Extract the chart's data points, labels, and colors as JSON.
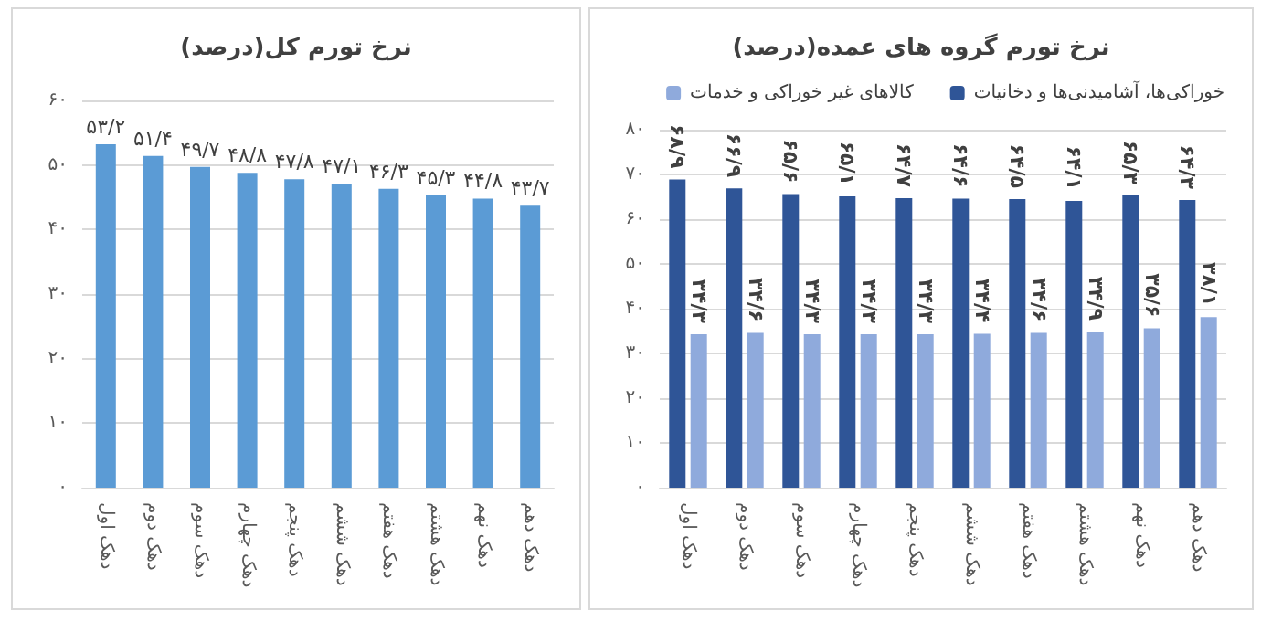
{
  "chart_data": [
    {
      "type": "bar",
      "title": "نرخ تورم کل(درصد)",
      "categories": [
        "دهک اول",
        "دهک دوم",
        "دهک سوم",
        "دهک چهارم",
        "دهک پنجم",
        "دهک ششم",
        "دهک هفتم",
        "دهک هشتم",
        "دهک نهم",
        "دهک دهم"
      ],
      "series": [
        {
          "color": "#5b9bd5",
          "values": [
            53.2,
            51.4,
            49.7,
            48.8,
            47.8,
            47.1,
            46.3,
            45.3,
            44.8,
            43.7
          ],
          "value_labels": [
            "۵۳/۲",
            "۵۱/۴",
            "۴۹/۷",
            "۴۸/۸",
            "۴۷/۸",
            "۴۷/۱",
            "۴۶/۳",
            "۴۵/۳",
            "۴۴/۸",
            "۴۳/۷"
          ]
        }
      ],
      "ylim": [
        0,
        60
      ],
      "yticks": [
        {
          "value": 0,
          "label": "۰"
        },
        {
          "value": 10,
          "label": "۱۰"
        },
        {
          "value": 20,
          "label": "۲۰"
        },
        {
          "value": 30,
          "label": "۳۰"
        },
        {
          "value": 40,
          "label": "۴۰"
        },
        {
          "value": 50,
          "label": "۵۰"
        },
        {
          "value": 60,
          "label": "۶۰"
        }
      ],
      "grid": "y",
      "legend": false
    },
    {
      "type": "bar",
      "title": "نرخ تورم گروه های عمده(درصد)",
      "categories": [
        "دهک اول",
        "دهک دوم",
        "دهک سوم",
        "دهک چهارم",
        "دهک پنجم",
        "دهک ششم",
        "دهک هفتم",
        "دهک هشتم",
        "دهک نهم",
        "دهک دهم"
      ],
      "series": [
        {
          "name": "خوراکی‌ها، آشامیدنی‌ها و دخانیات",
          "color": "#2f5597",
          "values": [
            68.9,
            66.9,
            65.6,
            65.1,
            64.7,
            64.6,
            64.5,
            64.1,
            65.3,
            64.3
          ],
          "value_labels": [
            "۶۸/۹",
            "۶۶/۹",
            "۶۵/۶",
            "۶۵/۱",
            "۶۴/۷",
            "۶۴/۶",
            "۶۴/۵",
            "۶۴/۱",
            "۶۵/۳",
            "۶۴/۳"
          ]
        },
        {
          "name": "کالاهای غیر خوراکی و خدمات",
          "color": "#8faadc",
          "values": [
            34.3,
            34.6,
            34.3,
            34.3,
            34.3,
            34.4,
            34.6,
            34.9,
            35.6,
            38.1
          ],
          "value_labels": [
            "۳۴/۳",
            "۳۴/۶",
            "۳۴/۳",
            "۳۴/۳",
            "۳۴/۳",
            "۳۴/۴",
            "۳۴/۶",
            "۳۴/۹",
            "۳۵/۶",
            "۳۸/۱"
          ]
        }
      ],
      "ylim": [
        0,
        80
      ],
      "yticks": [
        {
          "value": 0,
          "label": "۰"
        },
        {
          "value": 10,
          "label": "۱۰"
        },
        {
          "value": 20,
          "label": "۲۰"
        },
        {
          "value": 30,
          "label": "۳۰"
        },
        {
          "value": 40,
          "label": "۴۰"
        },
        {
          "value": 50,
          "label": "۵۰"
        },
        {
          "value": 60,
          "label": "۶۰"
        },
        {
          "value": 70,
          "label": "۷۰"
        },
        {
          "value": 80,
          "label": "۸۰"
        }
      ],
      "grid": "y",
      "legend": "top"
    }
  ]
}
